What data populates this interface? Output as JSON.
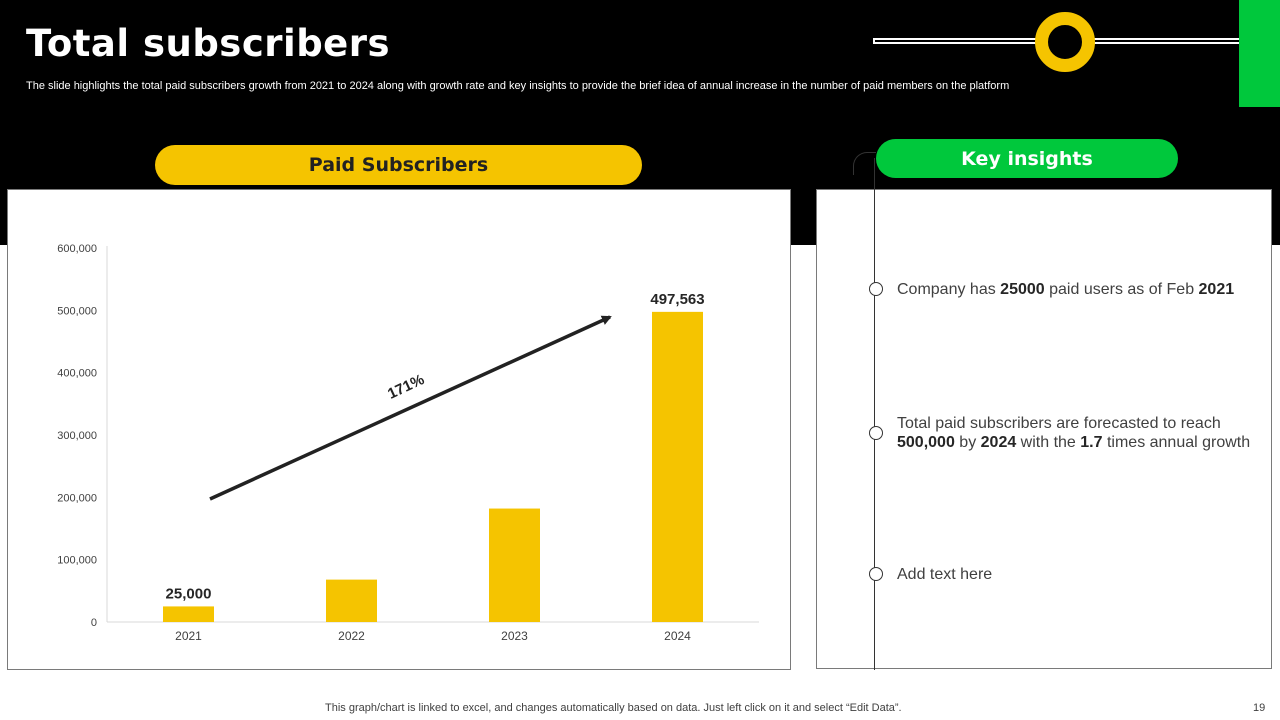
{
  "header": {
    "title": "Total subscribers",
    "subtitle": "The slide highlights the total paid subscribers growth from 2021 to 2024 along with growth rate and key insights to  provide the brief idea of annual increase in the number of  paid members on the platform"
  },
  "colors": {
    "accent_yellow": "#f5c400",
    "accent_green": "#00c83c",
    "background_band": "#000000"
  },
  "chart_section": {
    "heading": "Paid Subscribers"
  },
  "chart_data": {
    "type": "bar",
    "title": "",
    "categories": [
      "2021",
      "2022",
      "2023",
      "2024"
    ],
    "values": [
      25000,
      68000,
      182000,
      497563
    ],
    "data_labels": [
      "25,000",
      "",
      "",
      "497,563"
    ],
    "ylim": [
      0,
      600000
    ],
    "yticks": [
      "0",
      "100,000",
      "200,000",
      "300,000",
      "400,000",
      "500,000",
      "600,000"
    ],
    "xlabel": "",
    "ylabel": "",
    "grid": false,
    "legend": "none",
    "annotation": {
      "text": "171%",
      "type": "growth-arrow"
    }
  },
  "insights": {
    "heading": "Key insights",
    "items": [
      {
        "pre": "Company has ",
        "b1": "25000",
        "mid": " paid users as of Feb ",
        "b2": "2021"
      },
      {
        "line1": "Total paid subscribers are forecasted to reach",
        "b1": "500,000",
        "mid1": " by ",
        "b2": "2024",
        "mid2": " with the ",
        "b3": "1.7",
        "post": " times annual growth"
      },
      {
        "text": "Add text here"
      }
    ]
  },
  "footer": {
    "note": "This graph/chart is linked to excel,  and changes automatically based on data. Just left click on it and select “Edit Data”.",
    "page_number": "19"
  }
}
